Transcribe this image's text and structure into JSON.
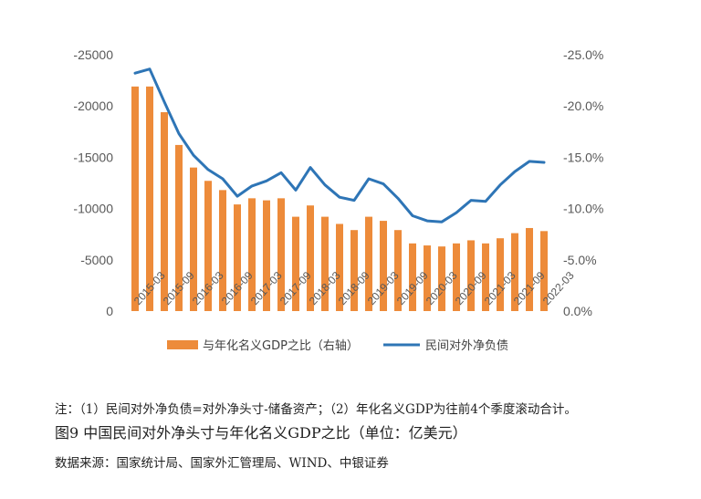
{
  "chart_data": {
    "type": "bar+line",
    "categories": [
      "2015-03",
      "2015-06",
      "2015-09",
      "2015-12",
      "2016-03",
      "2016-06",
      "2016-09",
      "2016-12",
      "2017-03",
      "2017-06",
      "2017-09",
      "2017-12",
      "2018-03",
      "2018-06",
      "2018-09",
      "2018-12",
      "2019-03",
      "2019-06",
      "2019-09",
      "2019-12",
      "2020-03",
      "2020-06",
      "2020-09",
      "2020-12",
      "2021-03",
      "2021-06",
      "2021-09",
      "2021-12",
      "2022-03"
    ],
    "x_tick_labels": [
      "2015-03",
      "2015-09",
      "2016-03",
      "2016-09",
      "2017-03",
      "2017-09",
      "2018-03",
      "2018-09",
      "2019-03",
      "2019-09",
      "2020-03",
      "2020-09",
      "2021-03",
      "2021-09",
      "2022-03"
    ],
    "series": [
      {
        "name": "与年化名义GDP之比（右轴）",
        "type": "bar",
        "axis": "right",
        "color": "#ED8B3A",
        "values": [
          -21.9,
          -21.9,
          -19.4,
          -16.2,
          -14.0,
          -12.7,
          -11.8,
          -10.4,
          -11.0,
          -10.8,
          -11.0,
          -9.2,
          -10.3,
          -9.2,
          -8.5,
          -7.9,
          -9.2,
          -8.8,
          -7.9,
          -6.6,
          -6.4,
          -6.3,
          -6.6,
          -6.9,
          -6.6,
          -7.1,
          -7.6,
          -8.1,
          -7.8
        ]
      },
      {
        "name": "民间对外净负债",
        "type": "line",
        "axis": "left",
        "color": "#2E75B6",
        "values": [
          -23200,
          -23600,
          -20400,
          -17300,
          -15200,
          -13800,
          -12900,
          -11200,
          -12200,
          -12700,
          -13500,
          -11800,
          -14000,
          -12300,
          -11100,
          -10800,
          -12900,
          -12400,
          -11000,
          -9300,
          -8800,
          -8700,
          -9600,
          -10800,
          -10700,
          -12300,
          -13600,
          -14600,
          -14500
        ]
      }
    ],
    "left_axis": {
      "ticks": [
        "-25000",
        "-20000",
        "-15000",
        "-10000",
        "-5000",
        "0"
      ],
      "ylim": [
        -25000,
        0
      ],
      "reversed": true
    },
    "right_axis": {
      "ticks": [
        "-25.0%",
        "-20.0%",
        "-15.0%",
        "-10.0%",
        "-5.0%",
        "0.0%"
      ],
      "ylim": [
        -25,
        0
      ],
      "reversed": true
    },
    "grid": false,
    "legend_position": "bottom"
  },
  "notes": {
    "note1": "注：（1）民间对外净负债=对外净头寸-储备资产；（2）年化名义GDP为往前4个季度滚动合计。",
    "caption": "图9 中国民间对外净头寸与年化名义GDP之比（单位：亿美元）",
    "source": "数据来源：国家统计局、国家外汇管理局、WIND、中银证券"
  }
}
